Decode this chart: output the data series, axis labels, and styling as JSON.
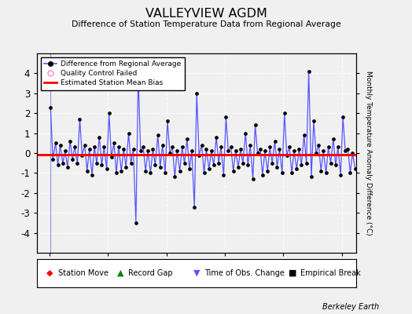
{
  "title": "VALLEYVIEW AGDM",
  "subtitle": "Difference of Station Temperature Data from Regional Average",
  "ylabel": "Monthly Temperature Anomaly Difference (°C)",
  "xlim": [
    2003.58,
    2014.5
  ],
  "ylim": [
    -5,
    5
  ],
  "yticks": [
    -4,
    -3,
    -2,
    -1,
    0,
    1,
    2,
    3,
    4
  ],
  "xticks": [
    2004,
    2006,
    2008,
    2010,
    2012,
    2014
  ],
  "bias_line": -0.08,
  "background_color": "#f0f0f0",
  "line_color": "#5555ff",
  "bias_color": "#ff0000",
  "marker_color": "#000000",
  "watermark": "Berkeley Earth",
  "times": [
    2004.04,
    2004.12,
    2004.21,
    2004.29,
    2004.37,
    2004.46,
    2004.54,
    2004.62,
    2004.71,
    2004.79,
    2004.87,
    2004.96,
    2005.04,
    2005.12,
    2005.21,
    2005.29,
    2005.37,
    2005.46,
    2005.54,
    2005.62,
    2005.71,
    2005.79,
    2005.87,
    2005.96,
    2006.04,
    2006.12,
    2006.21,
    2006.29,
    2006.37,
    2006.46,
    2006.54,
    2006.62,
    2006.71,
    2006.79,
    2006.87,
    2006.96,
    2007.04,
    2007.12,
    2007.21,
    2007.29,
    2007.37,
    2007.46,
    2007.54,
    2007.62,
    2007.71,
    2007.79,
    2007.87,
    2007.96,
    2008.04,
    2008.12,
    2008.21,
    2008.29,
    2008.37,
    2008.46,
    2008.54,
    2008.62,
    2008.71,
    2008.79,
    2008.87,
    2008.96,
    2009.04,
    2009.12,
    2009.21,
    2009.29,
    2009.37,
    2009.46,
    2009.54,
    2009.62,
    2009.71,
    2009.79,
    2009.87,
    2009.96,
    2010.04,
    2010.12,
    2010.21,
    2010.29,
    2010.37,
    2010.46,
    2010.54,
    2010.62,
    2010.71,
    2010.79,
    2010.87,
    2010.96,
    2011.04,
    2011.12,
    2011.21,
    2011.29,
    2011.37,
    2011.46,
    2011.54,
    2011.62,
    2011.71,
    2011.79,
    2011.87,
    2011.96,
    2012.04,
    2012.12,
    2012.21,
    2012.29,
    2012.37,
    2012.46,
    2012.54,
    2012.62,
    2012.71,
    2012.79,
    2012.87,
    2012.96,
    2013.04,
    2013.12,
    2013.21,
    2013.29,
    2013.37,
    2013.46,
    2013.54,
    2013.62,
    2013.71,
    2013.79,
    2013.87,
    2013.96,
    2014.04,
    2014.12,
    2014.21,
    2014.29,
    2014.37,
    2014.46
  ],
  "values": [
    2.3,
    -0.3,
    0.5,
    -0.6,
    0.4,
    -0.5,
    0.1,
    -0.7,
    0.6,
    -0.3,
    0.3,
    -0.5,
    1.7,
    -0.1,
    0.4,
    -0.9,
    0.2,
    -1.1,
    0.3,
    -0.5,
    0.8,
    -0.6,
    0.3,
    -0.8,
    2.0,
    -0.2,
    0.5,
    -1.0,
    0.3,
    -0.9,
    0.2,
    -0.7,
    1.0,
    -0.5,
    0.2,
    -3.5,
    3.9,
    0.1,
    0.3,
    -0.9,
    0.1,
    -1.0,
    0.2,
    -0.6,
    0.9,
    -0.7,
    0.4,
    -1.0,
    1.6,
    0.0,
    0.3,
    -1.2,
    0.1,
    -0.9,
    0.3,
    -0.5,
    0.7,
    -0.8,
    0.1,
    -2.7,
    3.0,
    -0.1,
    0.4,
    -1.0,
    0.2,
    -0.8,
    0.1,
    -0.6,
    0.8,
    -0.5,
    0.3,
    -1.1,
    1.8,
    0.1,
    0.3,
    -0.9,
    0.1,
    -0.7,
    0.2,
    -0.5,
    1.0,
    -0.6,
    0.4,
    -1.3,
    1.4,
    0.0,
    0.2,
    -1.1,
    0.1,
    -0.9,
    0.3,
    -0.5,
    0.6,
    -0.7,
    0.2,
    -1.0,
    2.0,
    -0.1,
    0.3,
    -1.0,
    0.1,
    -0.8,
    0.2,
    -0.6,
    0.9,
    -0.5,
    4.1,
    -1.2,
    1.6,
    0.0,
    0.4,
    -0.9,
    0.1,
    -1.0,
    0.3,
    -0.5,
    0.7,
    -0.6,
    0.3,
    -1.1,
    1.8,
    0.1,
    0.2,
    -1.0,
    0.0,
    -0.8
  ]
}
